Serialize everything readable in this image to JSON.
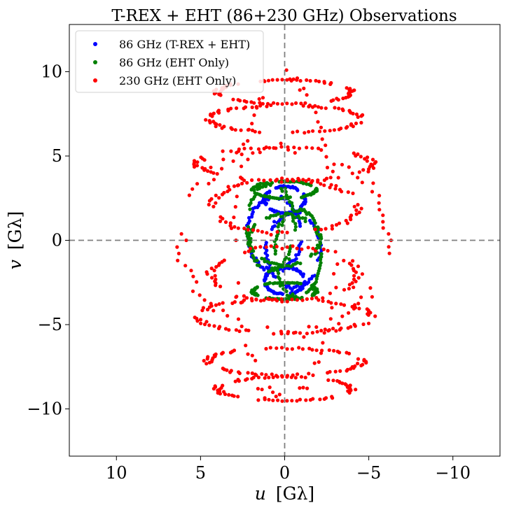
{
  "chart_data": {
    "type": "scatter",
    "title": "T-REX + EHT (86+230 GHz) Observations",
    "xlabel_var": "u",
    "xlabel_unit": "[Gλ]",
    "ylabel_var": "v",
    "ylabel_unit": "[Gλ]",
    "xlim": [
      12.8,
      -12.8
    ],
    "ylim": [
      -12.8,
      12.8
    ],
    "x_reversed": true,
    "xticks": [
      10,
      5,
      0,
      -5,
      -10
    ],
    "xtick_labels": [
      "10",
      "5",
      "0",
      "−5",
      "−10"
    ],
    "yticks": [
      10,
      5,
      0,
      -5,
      -10
    ],
    "ytick_labels": [
      "10",
      "5",
      "0",
      "−5",
      "−10"
    ],
    "grid": false,
    "reference_lines": [
      {
        "axis": "x",
        "value": 0,
        "style": "dashed",
        "color": "#808080"
      },
      {
        "axis": "y",
        "value": 0,
        "style": "dashed",
        "color": "#808080"
      }
    ],
    "legend_placement": "top-left",
    "series": [
      {
        "name": "86 GHz (T-REX + EHT)",
        "color": "#0000ff",
        "description_tracks": [
          {
            "cx": 0,
            "cy": -2.4,
            "rx": 1.2,
            "ry": 0.8
          },
          {
            "cx": 0,
            "cy": 2.4,
            "rx": 1.2,
            "ry": 0.8
          },
          {
            "cx": -0.5,
            "cy": -0.6,
            "rx": 1.6,
            "ry": 2.2
          },
          {
            "cx": 0.6,
            "cy": 0.4,
            "rx": 1.6,
            "ry": 2.2
          }
        ]
      },
      {
        "name": "86 GHz (EHT Only)",
        "color": "#008000",
        "description_tracks": [
          {
            "cx": 0,
            "cy": 3.0,
            "rx": 1.9,
            "ry": 0.5
          },
          {
            "cx": 0,
            "cy": -3.0,
            "rx": 1.9,
            "ry": 0.5
          },
          {
            "cx": 0.8,
            "cy": 0.8,
            "rx": 1.4,
            "ry": 2.6
          },
          {
            "cx": -0.8,
            "cy": -0.8,
            "rx": 1.4,
            "ry": 2.6
          },
          {
            "cx": 0,
            "cy": 0,
            "rx": 2.1,
            "ry": 1.5
          }
        ]
      },
      {
        "name": "230 GHz (EHT Only)",
        "color": "#ff0000",
        "description_tracks": [
          {
            "cx": 0,
            "cy": 8.8,
            "rx": 4.0,
            "ry": 0.7
          },
          {
            "cx": 0,
            "cy": -8.8,
            "rx": 4.0,
            "ry": 0.7
          },
          {
            "cx": 0,
            "cy": 7.2,
            "rx": 4.6,
            "ry": 0.8
          },
          {
            "cx": 0,
            "cy": -7.2,
            "rx": 4.6,
            "ry": 0.8
          },
          {
            "cx": 0,
            "cy": 4.5,
            "rx": 5.2,
            "ry": 1.0
          },
          {
            "cx": 0,
            "cy": -4.5,
            "rx": 5.2,
            "ry": 1.0
          },
          {
            "cx": 0,
            "cy": 2.0,
            "rx": 4.4,
            "ry": 1.6
          },
          {
            "cx": 0,
            "cy": -2.0,
            "rx": 4.4,
            "ry": 1.6
          },
          {
            "cx": 0,
            "cy": 0,
            "rx": 6.2,
            "ry": 5.5
          },
          {
            "cx": 0,
            "cy": 0,
            "rx": 3.0,
            "ry": 9.6
          }
        ]
      }
    ]
  }
}
